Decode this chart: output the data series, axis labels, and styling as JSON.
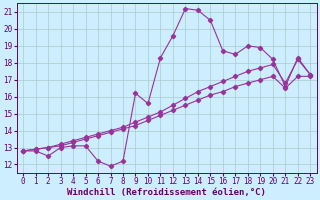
{
  "xlabel": "Windchill (Refroidissement éolien,°C)",
  "bg_color": "#cceeff",
  "line_color": "#993399",
  "grid_color": "#aacccc",
  "xlim": [
    -0.5,
    23.5
  ],
  "ylim": [
    11.5,
    21.5
  ],
  "yticks": [
    12,
    13,
    14,
    15,
    16,
    17,
    18,
    19,
    20,
    21
  ],
  "xticks": [
    0,
    1,
    2,
    3,
    4,
    5,
    6,
    7,
    8,
    9,
    10,
    11,
    12,
    13,
    14,
    15,
    16,
    17,
    18,
    19,
    20,
    21,
    22,
    23
  ],
  "line1_x": [
    0,
    1,
    2,
    3,
    4,
    5,
    6,
    7,
    8,
    9,
    10,
    11,
    12,
    13,
    14,
    15,
    16,
    17,
    18,
    19,
    20,
    21,
    22,
    23
  ],
  "line1_y": [
    12.8,
    12.8,
    12.5,
    13.0,
    13.1,
    13.1,
    12.2,
    11.9,
    12.2,
    16.2,
    15.6,
    18.3,
    19.6,
    21.2,
    21.1,
    20.5,
    18.7,
    18.5,
    19.0,
    18.9,
    18.2,
    16.6,
    18.3,
    17.3
  ],
  "line2_x": [
    0,
    1,
    2,
    3,
    4,
    5,
    6,
    7,
    8,
    9,
    10,
    11,
    12,
    13,
    14,
    15,
    16,
    17,
    18,
    19,
    20,
    21,
    22,
    23
  ],
  "line2_y": [
    12.8,
    12.9,
    13.0,
    13.2,
    13.4,
    13.6,
    13.8,
    14.0,
    14.2,
    14.5,
    14.8,
    15.1,
    15.5,
    15.9,
    16.3,
    16.6,
    16.9,
    17.2,
    17.5,
    17.7,
    17.9,
    16.8,
    18.2,
    17.3
  ],
  "line3_x": [
    0,
    1,
    2,
    3,
    4,
    5,
    6,
    7,
    8,
    9,
    10,
    11,
    12,
    13,
    14,
    15,
    16,
    17,
    18,
    19,
    20,
    21,
    22,
    23
  ],
  "line3_y": [
    12.8,
    12.9,
    13.0,
    13.1,
    13.3,
    13.5,
    13.7,
    13.9,
    14.1,
    14.3,
    14.6,
    14.9,
    15.2,
    15.5,
    15.8,
    16.1,
    16.3,
    16.6,
    16.8,
    17.0,
    17.2,
    16.5,
    17.2,
    17.2
  ],
  "font_color": "#660066",
  "label_fontsize": 6.5,
  "tick_fontsize": 5.5
}
